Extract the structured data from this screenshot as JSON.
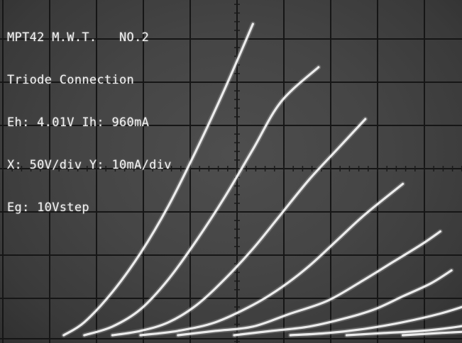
{
  "readout": {
    "line1": "MPT42 M.W.T.   NO.2",
    "line2": "Triode Connection",
    "line3": "Eh: 4.01V Ih: 960mA",
    "line4": "X: 50V/div Y: 10mA/div",
    "line5": "Eg: 10Vstep"
  },
  "chart_data": {
    "type": "line",
    "title": "",
    "xlabel": "",
    "ylabel": "",
    "x_unit": "V",
    "y_unit": "mA",
    "x_per_div": 50,
    "y_per_div": 10,
    "xlim": [
      0,
      475
    ],
    "ylim": [
      0,
      68
    ],
    "grid": true,
    "series": [
      {
        "values": [
          [
            18,
            0
          ],
          [
            40,
            3
          ],
          [
            70,
            10
          ],
          [
            100,
            19
          ],
          [
            130,
            30
          ],
          [
            160,
            43
          ],
          [
            190,
            57
          ],
          [
            220,
            72
          ]
        ]
      },
      {
        "values": [
          [
            40,
            0
          ],
          [
            70,
            2
          ],
          [
            100,
            6
          ],
          [
            130,
            13
          ],
          [
            160,
            22
          ],
          [
            190,
            32
          ],
          [
            220,
            43
          ],
          [
            250,
            54
          ],
          [
            290,
            62
          ]
        ]
      },
      {
        "values": [
          [
            70,
            0
          ],
          [
            100,
            1
          ],
          [
            130,
            3
          ],
          [
            160,
            7
          ],
          [
            190,
            13
          ],
          [
            220,
            20
          ],
          [
            250,
            28
          ],
          [
            280,
            36
          ],
          [
            310,
            43
          ],
          [
            340,
            50
          ]
        ]
      },
      {
        "values": [
          [
            100,
            0
          ],
          [
            140,
            1
          ],
          [
            180,
            3
          ],
          [
            220,
            7
          ],
          [
            250,
            11
          ],
          [
            280,
            16
          ],
          [
            310,
            22
          ],
          [
            340,
            28
          ],
          [
            380,
            35
          ]
        ]
      },
      {
        "values": [
          [
            140,
            0
          ],
          [
            180,
            1
          ],
          [
            220,
            2
          ],
          [
            260,
            5
          ],
          [
            300,
            8
          ],
          [
            340,
            13
          ],
          [
            370,
            17
          ],
          [
            400,
            21
          ],
          [
            420,
            24
          ]
        ]
      },
      {
        "values": [
          [
            200,
            0
          ],
          [
            240,
            1
          ],
          [
            280,
            2
          ],
          [
            320,
            4
          ],
          [
            350,
            6
          ],
          [
            380,
            9
          ],
          [
            410,
            12
          ],
          [
            432,
            15
          ]
        ]
      },
      {
        "values": [
          [
            260,
            0
          ],
          [
            300,
            0.5
          ],
          [
            340,
            1.5
          ],
          [
            380,
            3
          ],
          [
            420,
            5
          ],
          [
            450,
            7
          ]
        ]
      },
      {
        "values": [
          [
            320,
            0
          ],
          [
            360,
            0.5
          ],
          [
            400,
            1
          ],
          [
            440,
            2
          ],
          [
            460,
            3
          ]
        ]
      },
      {
        "values": [
          [
            380,
            0
          ],
          [
            420,
            0.5
          ],
          [
            460,
            1
          ],
          [
            470,
            1.5
          ]
        ]
      }
    ]
  }
}
